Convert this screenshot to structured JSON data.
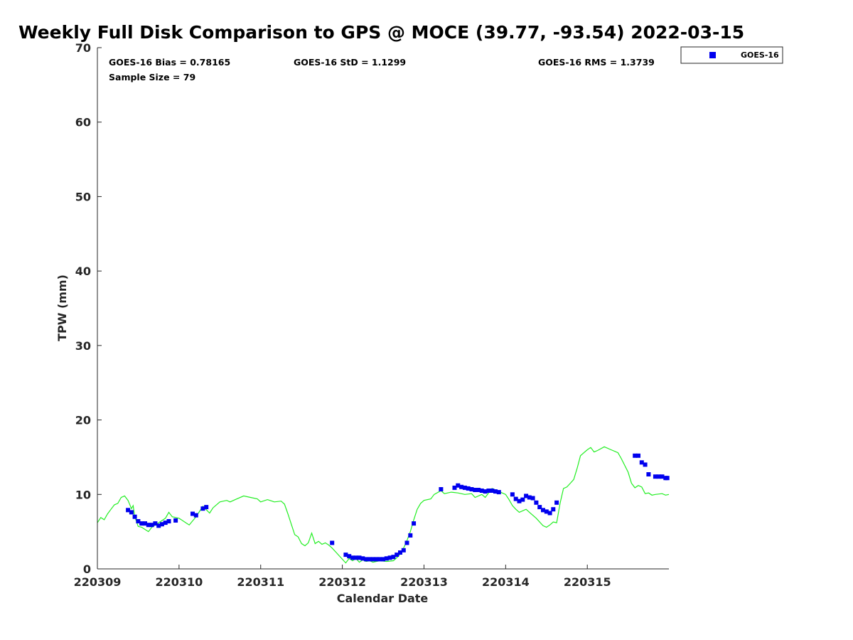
{
  "chart_data": {
    "type": "scatter",
    "title": "Weekly Full Disk Comparison to GPS @ MOCE (39.77, -93.54) 2022-03-15",
    "xlabel": "Calendar Date",
    "ylabel": "TPW (mm)",
    "xlim": [
      "2022-03-09 00:00",
      "2022-03-15 23:59"
    ],
    "ylim": [
      0,
      70
    ],
    "yticks": [
      0,
      10,
      20,
      30,
      40,
      50,
      60,
      70
    ],
    "xticks": [
      {
        "date": "2022-03-09",
        "label": "220309"
      },
      {
        "date": "2022-03-10",
        "label": "220310"
      },
      {
        "date": "2022-03-11",
        "label": "220311"
      },
      {
        "date": "2022-03-12",
        "label": "220312"
      },
      {
        "date": "2022-03-13",
        "label": "220313"
      },
      {
        "date": "2022-03-14",
        "label": "220314"
      },
      {
        "date": "2022-03-15",
        "label": "220315"
      }
    ],
    "grid": false,
    "legend_position": "outside-top-right",
    "stats": {
      "bias": "GOES-16 Bias = 0.78165",
      "std": "GOES-16 StD = 1.1299",
      "rms": "GOES-16 RMS = 1.3739",
      "sample": "Sample Size = 79"
    },
    "series": [
      {
        "name": "GOES-16",
        "kind": "scatter",
        "color": "#0000ee",
        "marker": "square",
        "points": [
          [
            "2022-03-09 09:00",
            7.9
          ],
          [
            "2022-03-09 10:00",
            7.6
          ],
          [
            "2022-03-09 11:00",
            7.0
          ],
          [
            "2022-03-09 12:00",
            6.4
          ],
          [
            "2022-03-09 13:00",
            6.1
          ],
          [
            "2022-03-09 14:00",
            6.1
          ],
          [
            "2022-03-09 15:00",
            5.9
          ],
          [
            "2022-03-09 16:00",
            5.9
          ],
          [
            "2022-03-09 17:00",
            6.1
          ],
          [
            "2022-03-09 18:00",
            5.8
          ],
          [
            "2022-03-09 19:00",
            6.0
          ],
          [
            "2022-03-09 20:00",
            6.2
          ],
          [
            "2022-03-09 21:00",
            6.4
          ],
          [
            "2022-03-09 23:00",
            6.5
          ],
          [
            "2022-03-10 04:00",
            7.4
          ],
          [
            "2022-03-10 05:00",
            7.2
          ],
          [
            "2022-03-10 07:00",
            8.1
          ],
          [
            "2022-03-10 08:00",
            8.3
          ],
          [
            "2022-03-11 21:00",
            3.5
          ],
          [
            "2022-03-12 01:00",
            1.9
          ],
          [
            "2022-03-12 02:00",
            1.7
          ],
          [
            "2022-03-12 03:00",
            1.5
          ],
          [
            "2022-03-12 04:00",
            1.5
          ],
          [
            "2022-03-12 05:00",
            1.5
          ],
          [
            "2022-03-12 06:00",
            1.4
          ],
          [
            "2022-03-12 07:00",
            1.3
          ],
          [
            "2022-03-12 08:00",
            1.3
          ],
          [
            "2022-03-12 09:00",
            1.3
          ],
          [
            "2022-03-12 10:00",
            1.3
          ],
          [
            "2022-03-12 11:00",
            1.3
          ],
          [
            "2022-03-12 12:00",
            1.3
          ],
          [
            "2022-03-12 13:00",
            1.4
          ],
          [
            "2022-03-12 14:00",
            1.5
          ],
          [
            "2022-03-12 15:00",
            1.6
          ],
          [
            "2022-03-12 16:00",
            1.9
          ],
          [
            "2022-03-12 17:00",
            2.2
          ],
          [
            "2022-03-12 18:00",
            2.5
          ],
          [
            "2022-03-12 19:00",
            3.5
          ],
          [
            "2022-03-12 20:00",
            4.5
          ],
          [
            "2022-03-12 21:00",
            6.1
          ],
          [
            "2022-03-13 05:00",
            10.7
          ],
          [
            "2022-03-13 09:00",
            10.9
          ],
          [
            "2022-03-13 10:00",
            11.2
          ],
          [
            "2022-03-13 11:00",
            11.0
          ],
          [
            "2022-03-13 12:00",
            10.9
          ],
          [
            "2022-03-13 13:00",
            10.8
          ],
          [
            "2022-03-13 14:00",
            10.7
          ],
          [
            "2022-03-13 15:00",
            10.6
          ],
          [
            "2022-03-13 16:00",
            10.6
          ],
          [
            "2022-03-13 17:00",
            10.5
          ],
          [
            "2022-03-13 18:00",
            10.4
          ],
          [
            "2022-03-13 19:00",
            10.5
          ],
          [
            "2022-03-13 20:00",
            10.5
          ],
          [
            "2022-03-13 21:00",
            10.4
          ],
          [
            "2022-03-13 22:00",
            10.3
          ],
          [
            "2022-03-14 02:00",
            10.0
          ],
          [
            "2022-03-14 03:00",
            9.4
          ],
          [
            "2022-03-14 04:00",
            9.1
          ],
          [
            "2022-03-14 05:00",
            9.3
          ],
          [
            "2022-03-14 06:00",
            9.8
          ],
          [
            "2022-03-14 07:00",
            9.6
          ],
          [
            "2022-03-14 08:00",
            9.5
          ],
          [
            "2022-03-14 09:00",
            8.9
          ],
          [
            "2022-03-14 10:00",
            8.3
          ],
          [
            "2022-03-14 11:00",
            7.9
          ],
          [
            "2022-03-14 12:00",
            7.7
          ],
          [
            "2022-03-14 13:00",
            7.5
          ],
          [
            "2022-03-14 14:00",
            8.0
          ],
          [
            "2022-03-14 15:00",
            8.9
          ],
          [
            "2022-03-15 14:00",
            15.2
          ],
          [
            "2022-03-15 15:00",
            15.2
          ],
          [
            "2022-03-15 16:00",
            14.3
          ],
          [
            "2022-03-15 17:00",
            14.0
          ],
          [
            "2022-03-15 18:00",
            12.7
          ],
          [
            "2022-03-15 20:00",
            12.4
          ],
          [
            "2022-03-15 21:00",
            12.4
          ],
          [
            "2022-03-15 22:00",
            12.4
          ],
          [
            "2022-03-15 23:00",
            12.2
          ],
          [
            "2022-03-15 23:30",
            12.2
          ]
        ]
      },
      {
        "name": "",
        "kind": "line",
        "color": "#22ee22",
        "points": [
          [
            "2022-03-09 00:00",
            6.2
          ],
          [
            "2022-03-09 01:00",
            6.9
          ],
          [
            "2022-03-09 02:00",
            6.6
          ],
          [
            "2022-03-09 03:00",
            7.4
          ],
          [
            "2022-03-09 04:00",
            8.0
          ],
          [
            "2022-03-09 05:00",
            8.6
          ],
          [
            "2022-03-09 06:00",
            8.8
          ],
          [
            "2022-03-09 07:00",
            9.6
          ],
          [
            "2022-03-09 08:00",
            9.8
          ],
          [
            "2022-03-09 09:00",
            9.2
          ],
          [
            "2022-03-09 10:00",
            8.1
          ],
          [
            "2022-03-09 10:30",
            8.5
          ],
          [
            "2022-03-09 11:00",
            7.0
          ],
          [
            "2022-03-09 12:00",
            5.7
          ],
          [
            "2022-03-09 13:00",
            5.6
          ],
          [
            "2022-03-09 14:00",
            5.3
          ],
          [
            "2022-03-09 15:00",
            5.0
          ],
          [
            "2022-03-09 16:00",
            5.6
          ],
          [
            "2022-03-09 18:00",
            6.2
          ],
          [
            "2022-03-09 20:00",
            6.8
          ],
          [
            "2022-03-09 21:00",
            7.6
          ],
          [
            "2022-03-09 22:00",
            7.0
          ],
          [
            "2022-03-10 00:00",
            6.8
          ],
          [
            "2022-03-10 02:00",
            6.2
          ],
          [
            "2022-03-10 03:00",
            5.9
          ],
          [
            "2022-03-10 05:00",
            7.0
          ],
          [
            "2022-03-10 07:00",
            8.4
          ],
          [
            "2022-03-10 09:00",
            7.5
          ],
          [
            "2022-03-10 10:00",
            8.2
          ],
          [
            "2022-03-10 12:00",
            9.0
          ],
          [
            "2022-03-10 14:00",
            9.2
          ],
          [
            "2022-03-10 15:00",
            9.0
          ],
          [
            "2022-03-10 17:00",
            9.4
          ],
          [
            "2022-03-10 19:00",
            9.8
          ],
          [
            "2022-03-10 21:00",
            9.6
          ],
          [
            "2022-03-10 23:00",
            9.4
          ],
          [
            "2022-03-11 00:00",
            9.0
          ],
          [
            "2022-03-11 02:00",
            9.3
          ],
          [
            "2022-03-11 04:00",
            9.0
          ],
          [
            "2022-03-11 06:00",
            9.1
          ],
          [
            "2022-03-11 07:00",
            8.7
          ],
          [
            "2022-03-11 08:00",
            7.4
          ],
          [
            "2022-03-11 09:00",
            6.0
          ],
          [
            "2022-03-11 10:00",
            4.6
          ],
          [
            "2022-03-11 11:00",
            4.3
          ],
          [
            "2022-03-11 12:00",
            3.4
          ],
          [
            "2022-03-11 13:00",
            3.1
          ],
          [
            "2022-03-11 14:00",
            3.5
          ],
          [
            "2022-03-11 15:00",
            4.8
          ],
          [
            "2022-03-11 16:00",
            3.4
          ],
          [
            "2022-03-11 17:00",
            3.7
          ],
          [
            "2022-03-11 18:00",
            3.3
          ],
          [
            "2022-03-11 19:00",
            3.5
          ],
          [
            "2022-03-11 20:00",
            3.2
          ],
          [
            "2022-03-11 21:00",
            2.8
          ],
          [
            "2022-03-11 22:00",
            2.3
          ],
          [
            "2022-03-12 00:00",
            1.3
          ],
          [
            "2022-03-12 01:00",
            0.8
          ],
          [
            "2022-03-12 02:00",
            1.4
          ],
          [
            "2022-03-12 03:00",
            1.1
          ],
          [
            "2022-03-12 04:00",
            1.4
          ],
          [
            "2022-03-12 05:00",
            0.9
          ],
          [
            "2022-03-12 06:00",
            1.2
          ],
          [
            "2022-03-12 07:00",
            1.0
          ],
          [
            "2022-03-12 08:00",
            1.1
          ],
          [
            "2022-03-12 09:00",
            0.9
          ],
          [
            "2022-03-12 10:00",
            1.0
          ],
          [
            "2022-03-12 11:00",
            1.1
          ],
          [
            "2022-03-12 13:00",
            1.0
          ],
          [
            "2022-03-12 15:00",
            1.1
          ],
          [
            "2022-03-12 16:00",
            1.5
          ],
          [
            "2022-03-12 17:00",
            2.0
          ],
          [
            "2022-03-12 18:00",
            2.8
          ],
          [
            "2022-03-12 19:00",
            3.8
          ],
          [
            "2022-03-12 20:00",
            5.0
          ],
          [
            "2022-03-12 21:00",
            6.6
          ],
          [
            "2022-03-12 22:00",
            8.0
          ],
          [
            "2022-03-12 23:00",
            8.8
          ],
          [
            "2022-03-13 00:00",
            9.2
          ],
          [
            "2022-03-13 02:00",
            9.4
          ],
          [
            "2022-03-13 03:00",
            10.0
          ],
          [
            "2022-03-13 05:00",
            10.5
          ],
          [
            "2022-03-13 06:00",
            10.1
          ],
          [
            "2022-03-13 08:00",
            10.3
          ],
          [
            "2022-03-13 10:00",
            10.2
          ],
          [
            "2022-03-13 12:00",
            10.0
          ],
          [
            "2022-03-13 14:00",
            10.1
          ],
          [
            "2022-03-13 15:00",
            9.6
          ],
          [
            "2022-03-13 17:00",
            10.0
          ],
          [
            "2022-03-13 18:00",
            9.6
          ],
          [
            "2022-03-13 20:00",
            10.8
          ],
          [
            "2022-03-13 22:00",
            10.4
          ],
          [
            "2022-03-14 00:00",
            10.0
          ],
          [
            "2022-03-14 01:00",
            9.3
          ],
          [
            "2022-03-14 02:00",
            8.5
          ],
          [
            "2022-03-14 03:00",
            8.0
          ],
          [
            "2022-03-14 04:00",
            7.6
          ],
          [
            "2022-03-14 06:00",
            8.0
          ],
          [
            "2022-03-14 07:00",
            7.6
          ],
          [
            "2022-03-14 09:00",
            6.8
          ],
          [
            "2022-03-14 11:00",
            5.8
          ],
          [
            "2022-03-14 12:00",
            5.6
          ],
          [
            "2022-03-14 13:00",
            5.9
          ],
          [
            "2022-03-14 14:00",
            6.3
          ],
          [
            "2022-03-14 15:00",
            6.2
          ],
          [
            "2022-03-14 16:00",
            8.8
          ],
          [
            "2022-03-14 17:00",
            10.8
          ],
          [
            "2022-03-14 18:00",
            11.0
          ],
          [
            "2022-03-14 19:00",
            11.5
          ],
          [
            "2022-03-14 20:00",
            12.0
          ],
          [
            "2022-03-14 21:00",
            13.5
          ],
          [
            "2022-03-14 22:00",
            15.2
          ],
          [
            "2022-03-15 00:00",
            16.0
          ],
          [
            "2022-03-15 01:00",
            16.3
          ],
          [
            "2022-03-15 02:00",
            15.7
          ],
          [
            "2022-03-15 03:00",
            15.9
          ],
          [
            "2022-03-15 05:00",
            16.4
          ],
          [
            "2022-03-15 07:00",
            16.0
          ],
          [
            "2022-03-15 09:00",
            15.6
          ],
          [
            "2022-03-15 10:00",
            14.8
          ],
          [
            "2022-03-15 12:00",
            13.0
          ],
          [
            "2022-03-15 13:00",
            11.5
          ],
          [
            "2022-03-15 14:00",
            10.9
          ],
          [
            "2022-03-15 15:00",
            11.2
          ],
          [
            "2022-03-15 16:00",
            11.0
          ],
          [
            "2022-03-15 17:00",
            10.1
          ],
          [
            "2022-03-15 18:00",
            10.2
          ],
          [
            "2022-03-15 19:00",
            9.9
          ],
          [
            "2022-03-15 20:00",
            10.0
          ],
          [
            "2022-03-15 22:00",
            10.1
          ],
          [
            "2022-03-15 23:00",
            9.9
          ],
          [
            "2022-03-15 23:59",
            10.0
          ]
        ]
      }
    ]
  }
}
